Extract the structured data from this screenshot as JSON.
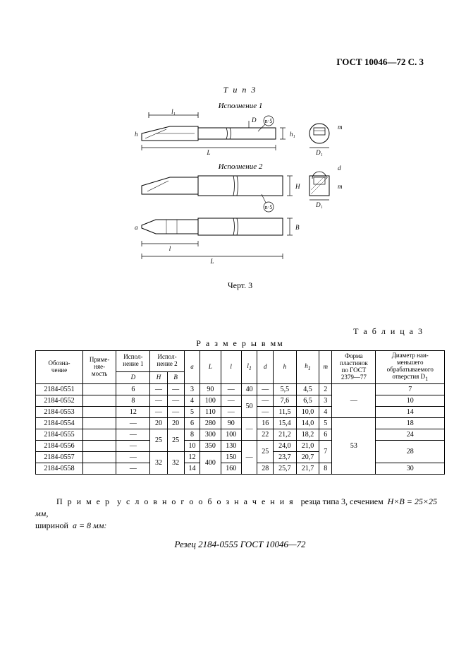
{
  "header": {
    "standard": "ГОСТ 10046—72 С. 3"
  },
  "figure": {
    "type_label": "Т и п  3",
    "exec1": "Исполнение 1",
    "exec2": "Исполнение 2",
    "caption": "Черт. 3",
    "dim_labels": {
      "L": "L",
      "l1": "l₁",
      "l": "l",
      "D": "D",
      "n5": "n·5",
      "h1": "h₁",
      "m": "m",
      "D1": "D₁",
      "d": "d",
      "a": "a"
    }
  },
  "table": {
    "title_right": "Т а б л и ц а  3",
    "title_center": "Р а з м е р ы  в  мм",
    "headers": {
      "designation": "Обозна-\nчение",
      "applicability": "Приме-\nняе-\nмость",
      "exec1": "Испол-\nнение 1",
      "exec2": "Испол-\nнение 2",
      "D": "D",
      "H": "H",
      "B": "B",
      "a": "a",
      "L": "L",
      "l": "l",
      "l1": "l",
      "l1_sub": "1",
      "d": "d",
      "h": "h",
      "h1": "h",
      "h1_sub": "1",
      "m": "m",
      "plate": "Форма\nпластинок\nпо ГОСТ\n2379—77",
      "min_diam": "Диаметр наи-\nменьшего\nобрабатываемого\nотверстия D",
      "min_diam_sub": "1"
    },
    "rows": [
      {
        "code": "2184-0551",
        "app": "",
        "D": "6",
        "H": "—",
        "B": "—",
        "a": "3",
        "L": "90",
        "l": "—",
        "l1": "40",
        "d": "—",
        "h": "5,5",
        "h1": "4,5",
        "m": "2",
        "plate": "",
        "D1": "7"
      },
      {
        "code": "2184-0552",
        "app": "",
        "D": "8",
        "H": "—",
        "B": "—",
        "a": "4",
        "L": "100",
        "l": "—",
        "l1": "50",
        "d": "—",
        "h": "7,6",
        "h1": "6,5",
        "m": "3",
        "plate": "—",
        "D1": "10"
      },
      {
        "code": "2184-0553",
        "app": "",
        "D": "12",
        "H": "—",
        "B": "—",
        "a": "5",
        "L": "110",
        "l": "—",
        "l1": "50",
        "d": "—",
        "h": "11,5",
        "h1": "10,0",
        "m": "4",
        "plate": "",
        "D1": "14"
      },
      {
        "code": "2184-0554",
        "app": "",
        "D": "—",
        "H": "20",
        "B": "20",
        "a": "6",
        "L": "280",
        "l": "90",
        "l1": "—",
        "d": "16",
        "h": "15,4",
        "h1": "14,0",
        "m": "5",
        "plate": "",
        "D1": "18"
      },
      {
        "code": "2184-0555",
        "app": "",
        "D": "—",
        "H": "25",
        "B": "25",
        "a": "8",
        "L": "300",
        "l": "100",
        "l1": "—",
        "d": "22",
        "h": "21,2",
        "h1": "18,2",
        "m": "6",
        "plate": "",
        "D1": "24"
      },
      {
        "code": "2184-0556",
        "app": "",
        "D": "—",
        "H": "25",
        "B": "25",
        "a": "10",
        "L": "350",
        "l": "130",
        "l1": "—",
        "d": "25",
        "h": "24,0",
        "h1": "21,0",
        "m": "7",
        "plate": "53",
        "D1": "28"
      },
      {
        "code": "2184-0557",
        "app": "",
        "D": "—",
        "H": "32",
        "B": "32",
        "a": "12",
        "L": "400",
        "l": "150",
        "l1": "—",
        "d": "25",
        "h": "23,7",
        "h1": "20,7",
        "m": "7",
        "plate": "",
        "D1": "28"
      },
      {
        "code": "2184-0558",
        "app": "",
        "D": "—",
        "H": "32",
        "B": "32",
        "a": "14",
        "L": "400",
        "l": "160",
        "l1": "—",
        "d": "28",
        "h": "25,7",
        "h1": "21,7",
        "m": "8",
        "plate": "",
        "D1": "30"
      }
    ]
  },
  "example": {
    "prefix": "П р и м е р",
    "spaced": "у с л о в н о г о   о б о з н а ч е н и я",
    "rest": "резца типа 3, сечением",
    "dims": "H×B = 25×25 мм,",
    "width": "шириной",
    "a_eq": "a = 8 мм:",
    "cutter": "Резец 2184-0555 ГОСТ 10046—72"
  },
  "style": {
    "page_bg": "#ffffff",
    "text_color": "#000000",
    "border_color": "#000000",
    "base_fontsize": 12,
    "table_fontsize": 10,
    "header_fontsize": 9
  }
}
